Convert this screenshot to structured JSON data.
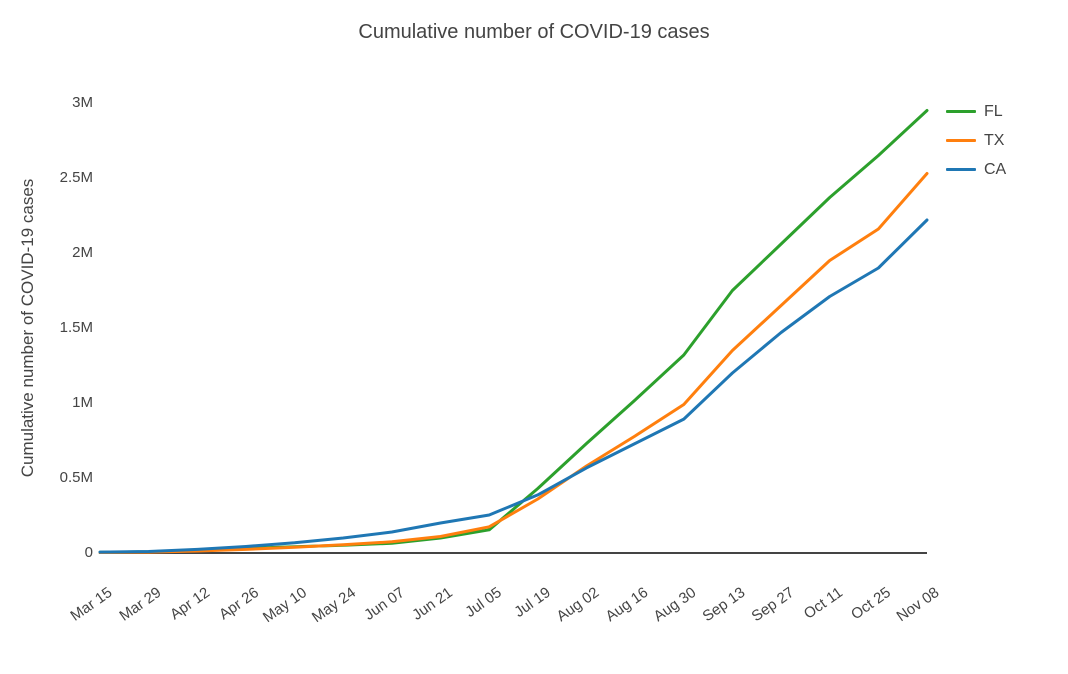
{
  "chart_data": {
    "type": "line",
    "title": "Cumulative number of COVID-19 cases",
    "xlabel": "",
    "ylabel": "Cumulative number of COVID-19 cases",
    "categories": [
      "Mar 15",
      "Mar 29",
      "Apr 12",
      "Apr 26",
      "May 10",
      "May 24",
      "Jun 07",
      "Jun 21",
      "Jul 05",
      "Jul 19",
      "Aug 02",
      "Aug 16",
      "Aug 30",
      "Sep 13",
      "Sep 27",
      "Oct 11",
      "Oct 25",
      "Nov 08"
    ],
    "series": [
      {
        "name": "FL",
        "color": "#2ca02c",
        "values": [
          5000,
          8000,
          19000,
          31000,
          42000,
          52000,
          65000,
          100000,
          155000,
          430000,
          730000,
          1020000,
          1320000,
          1750000,
          2060000,
          2370000,
          2650000,
          2950000
        ]
      },
      {
        "name": "TX",
        "color": "#ff7f0e",
        "values": [
          3000,
          6000,
          13000,
          24000,
          38000,
          55000,
          75000,
          110000,
          175000,
          360000,
          580000,
          780000,
          990000,
          1350000,
          1650000,
          1950000,
          2160000,
          2530000
        ]
      },
      {
        "name": "CA",
        "color": "#1f77b4",
        "values": [
          6000,
          10000,
          24000,
          43000,
          68000,
          100000,
          140000,
          200000,
          253000,
          387000,
          567000,
          730000,
          893000,
          1200000,
          1470000,
          1710000,
          1900000,
          2220000
        ]
      }
    ],
    "yticks": [
      {
        "value": 0,
        "label": "0"
      },
      {
        "value": 500000,
        "label": "0.5M"
      },
      {
        "value": 1000000,
        "label": "1M"
      },
      {
        "value": 1500000,
        "label": "1.5M"
      },
      {
        "value": 2000000,
        "label": "2M"
      },
      {
        "value": 2500000,
        "label": "2.5M"
      },
      {
        "value": 3000000,
        "label": "3M"
      }
    ],
    "ylim": [
      0,
      3000000
    ],
    "grid": false,
    "legend_position": "top-right",
    "axis_color": "#444444"
  }
}
